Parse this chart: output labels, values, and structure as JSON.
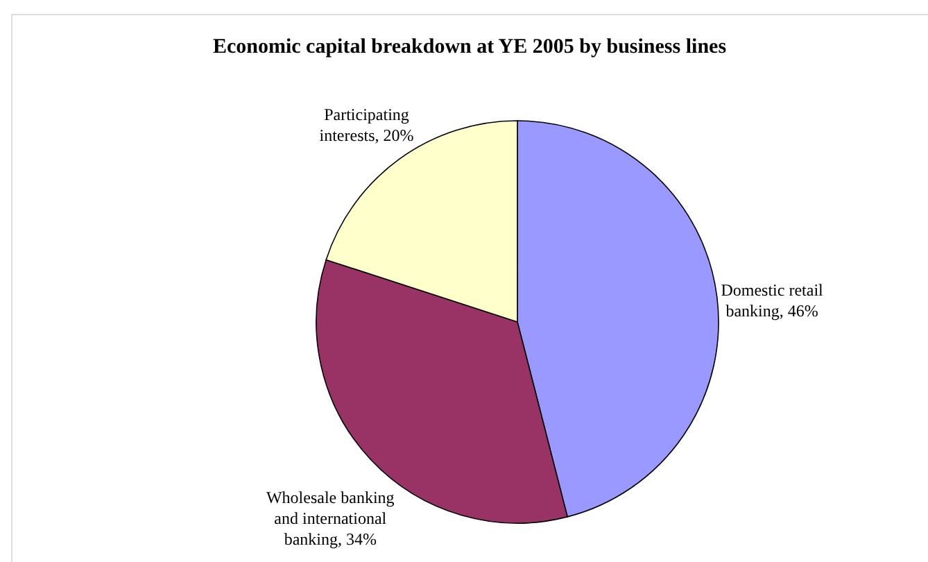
{
  "chart_data": {
    "type": "pie",
    "title": "Economic capital breakdown at YE 2005 by business lines",
    "categories": [
      "Domestic retail banking",
      "Wholesale banking and international banking",
      "Participating interests"
    ],
    "values": [
      46,
      34,
      20
    ],
    "value_labels": [
      "46%",
      "34%",
      "20%"
    ],
    "colors": [
      "#9999ff",
      "#993366",
      "#ffffcc"
    ]
  }
}
